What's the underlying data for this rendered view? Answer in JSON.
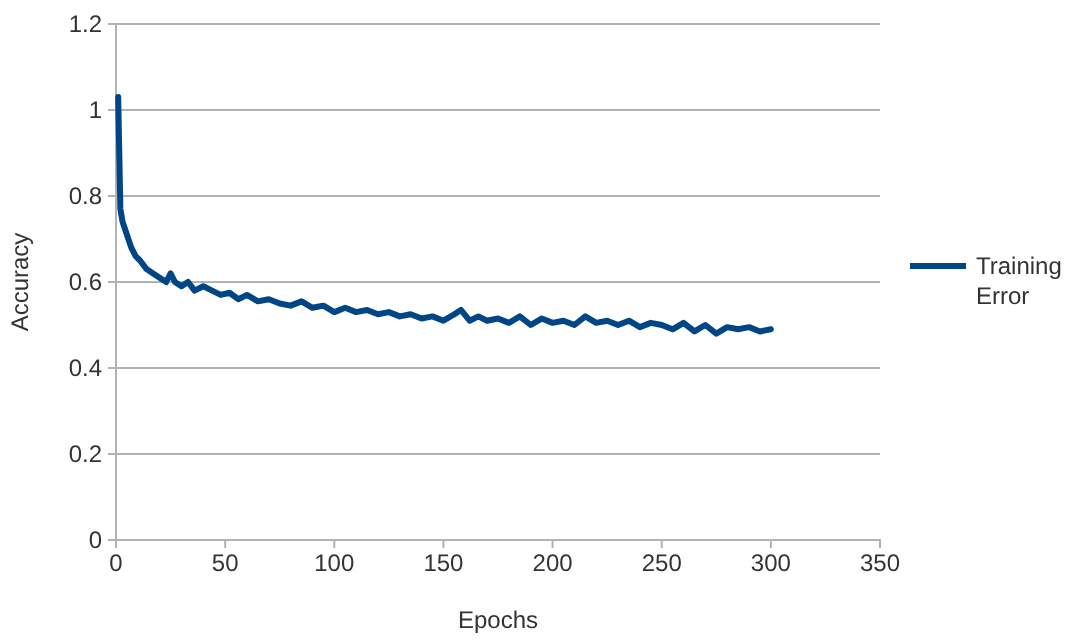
{
  "chart_data": {
    "type": "line",
    "xlabel": "Epochs",
    "ylabel": "Accuracy",
    "xlim": [
      0,
      350
    ],
    "xticks": [
      0,
      50,
      100,
      150,
      200,
      250,
      300,
      350
    ],
    "ylim": [
      0,
      1.2
    ],
    "yticks": [
      0,
      0.2,
      0.4,
      0.6,
      0.8,
      1,
      1.2
    ],
    "grid": "y",
    "legend": "right",
    "series": [
      {
        "name": "Training Error",
        "color": "#004586",
        "x": [
          1,
          2,
          3,
          5,
          7,
          9,
          11,
          14,
          17,
          20,
          23,
          25,
          27,
          30,
          33,
          36,
          40,
          44,
          48,
          52,
          56,
          60,
          65,
          70,
          75,
          80,
          85,
          90,
          95,
          100,
          105,
          110,
          115,
          120,
          125,
          130,
          135,
          140,
          145,
          150,
          155,
          158,
          162,
          166,
          170,
          175,
          180,
          185,
          190,
          195,
          200,
          205,
          210,
          215,
          220,
          225,
          230,
          235,
          240,
          245,
          250,
          255,
          260,
          265,
          270,
          275,
          280,
          285,
          290,
          295,
          300
        ],
        "values": [
          1.03,
          0.77,
          0.74,
          0.71,
          0.68,
          0.66,
          0.65,
          0.63,
          0.62,
          0.61,
          0.6,
          0.62,
          0.6,
          0.59,
          0.6,
          0.58,
          0.59,
          0.58,
          0.57,
          0.575,
          0.56,
          0.57,
          0.555,
          0.56,
          0.55,
          0.545,
          0.555,
          0.54,
          0.545,
          0.53,
          0.54,
          0.53,
          0.535,
          0.525,
          0.53,
          0.52,
          0.525,
          0.515,
          0.52,
          0.51,
          0.525,
          0.535,
          0.51,
          0.52,
          0.51,
          0.515,
          0.505,
          0.52,
          0.5,
          0.515,
          0.505,
          0.51,
          0.5,
          0.52,
          0.505,
          0.51,
          0.5,
          0.51,
          0.495,
          0.505,
          0.5,
          0.49,
          0.505,
          0.485,
          0.5,
          0.48,
          0.495,
          0.49,
          0.495,
          0.485,
          0.49
        ]
      }
    ]
  }
}
